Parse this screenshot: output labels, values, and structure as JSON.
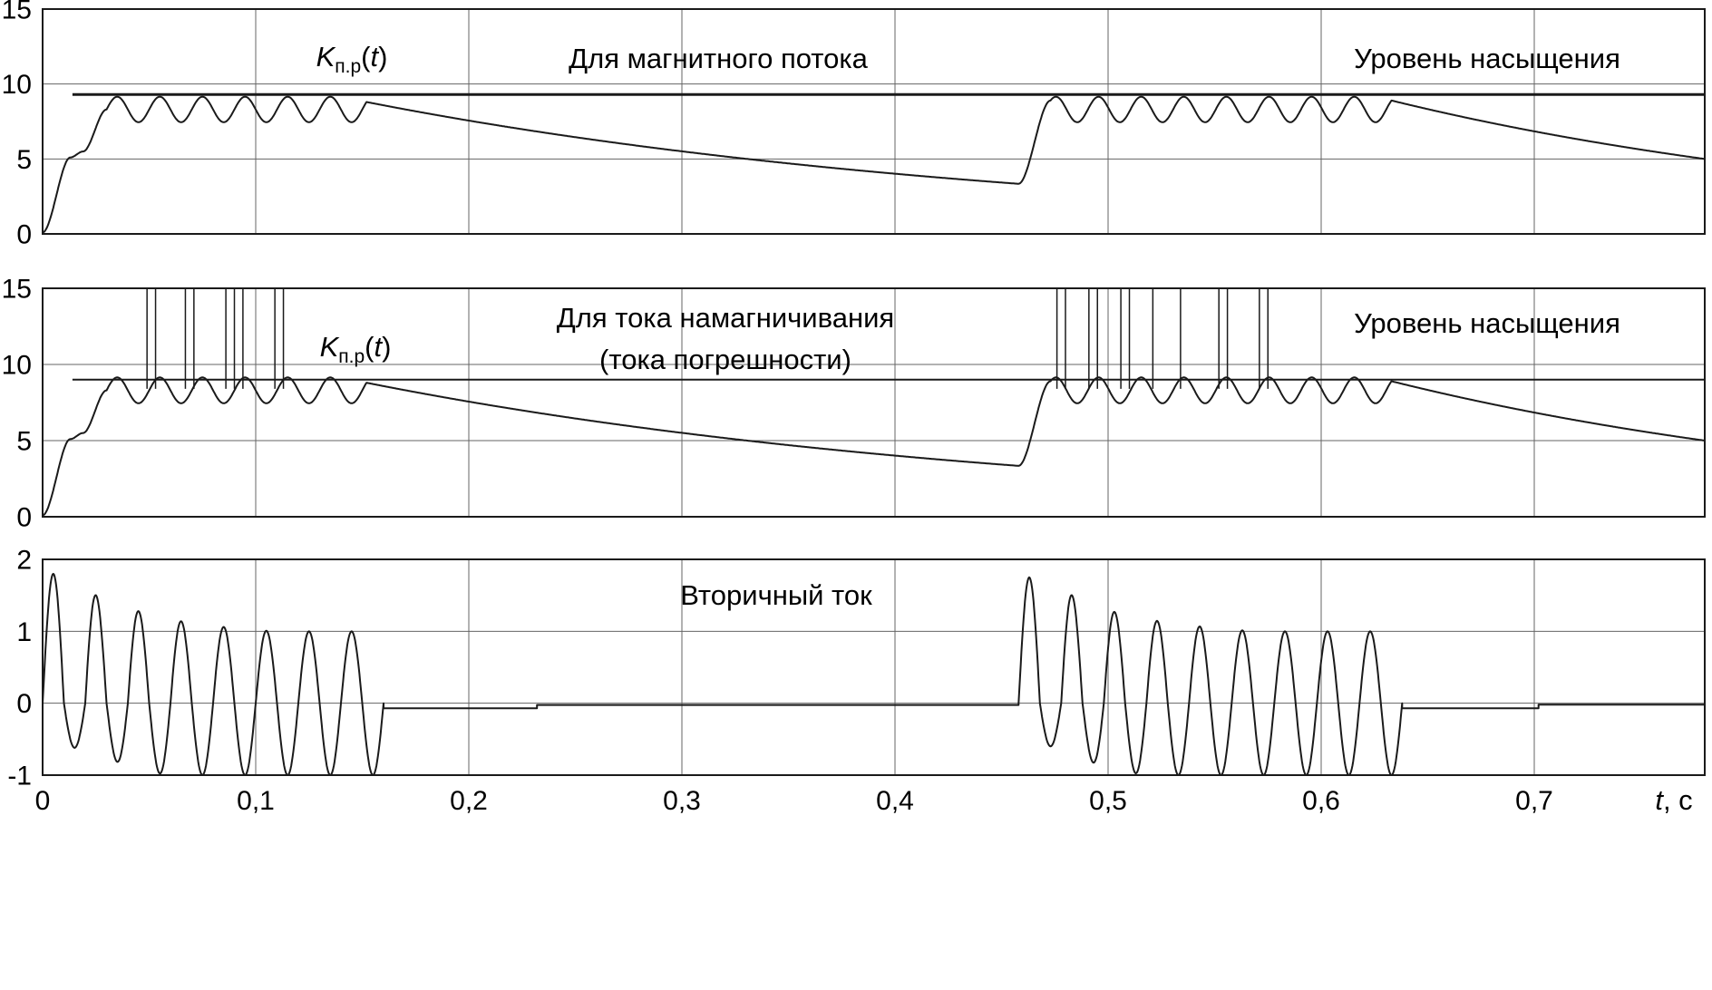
{
  "figure": {
    "bg": "#ffffff",
    "line_color": "#1a1a1a",
    "grid_color": "#646464"
  },
  "xaxis_label": {
    "var": "t",
    "unit": ", с"
  },
  "chart_data": [
    {
      "id": "flux",
      "type": "line",
      "title": "Для магнитного потока",
      "labels": {
        "kpr": {
          "k": "K",
          "sub": "п.р",
          "open": "(",
          "var": "t",
          "close": ")"
        },
        "sat": "Уровень насыщения"
      },
      "xlim": [
        0,
        0.78
      ],
      "ylim": [
        0,
        15
      ],
      "xgrid": [
        0.1,
        0.2,
        0.3,
        0.4,
        0.5,
        0.6,
        0.7
      ],
      "ygrid": [
        5,
        10
      ],
      "yticks": [
        {
          "v": 15,
          "label": "15"
        },
        {
          "v": 10,
          "label": "10"
        },
        {
          "v": 5,
          "label": "5"
        },
        {
          "v": 0,
          "label": "0"
        }
      ],
      "xticks": [],
      "series": [
        {
          "name": "flux-saturation-level",
          "type": "hline",
          "v": 9.3,
          "t0": 0.014,
          "t1": 0.78,
          "w": 3
        },
        {
          "name": "flux-kpr-curve",
          "type": "piecewise",
          "w": 2,
          "segments": [
            {
              "type": "smooth",
              "t0": 0,
              "t1": 0.013,
              "v0": 0.1,
              "v1": 5.1
            },
            {
              "type": "smooth",
              "t0": 0.013,
              "t1": 0.019,
              "v0": 5.1,
              "v1": 5.5
            },
            {
              "type": "smooth",
              "t0": 0.019,
              "t1": 0.03,
              "v0": 5.5,
              "v1": 8.3
            },
            {
              "type": "ripple",
              "t0": 0.03,
              "t1": 0.152,
              "base": 8.3,
              "amp": 0.85,
              "freq": 50,
              "phase": 0
            },
            {
              "type": "decay",
              "t0": 0.152,
              "t1": 0.458,
              "v0": 8.8,
              "vend": 0,
              "tau": 0.316
            },
            {
              "type": "smooth",
              "t0": 0.458,
              "t1": 0.473,
              "v0": 3.35,
              "v1": 8.9
            },
            {
              "type": "ripple",
              "t0": 0.473,
              "t1": 0.633,
              "base": 8.3,
              "amp": 0.85,
              "freq": 50,
              "phase": 0.78
            },
            {
              "type": "decay",
              "t0": 0.633,
              "t1": 0.78,
              "v0": 8.9,
              "vend": 0,
              "tau": 0.255
            }
          ]
        }
      ]
    },
    {
      "id": "mag",
      "type": "line",
      "title_line1": "Для тока намагничивания",
      "title_line2": "(тока погрешности)",
      "labels": {
        "kpr": {
          "k": "K",
          "sub": "п.р",
          "open": "(",
          "var": "t",
          "close": ")"
        },
        "sat": "Уровень насыщения"
      },
      "xlim": [
        0,
        0.78
      ],
      "ylim": [
        0,
        15
      ],
      "xgrid": [
        0.1,
        0.2,
        0.3,
        0.4,
        0.5,
        0.6,
        0.7
      ],
      "ygrid": [
        5,
        10
      ],
      "yticks": [
        {
          "v": 15,
          "label": "15"
        },
        {
          "v": 10,
          "label": "10"
        },
        {
          "v": 5,
          "label": "5"
        },
        {
          "v": 0,
          "label": "0"
        }
      ],
      "xticks": [],
      "series": [
        {
          "name": "mag-saturation-level",
          "type": "hline",
          "v": 9.0,
          "t0": 0.014,
          "t1": 0.78,
          "w": 2
        },
        {
          "name": "mag-error-spikes",
          "type": "vlines",
          "v0": 8.4,
          "v1": 15,
          "w": 1.5,
          "times": [
            0.049,
            0.053,
            0.067,
            0.071,
            0.086,
            0.09,
            0.094,
            0.109,
            0.113,
            0.476,
            0.48,
            0.491,
            0.495,
            0.506,
            0.51,
            0.521,
            0.534,
            0.552,
            0.556,
            0.571,
            0.575
          ]
        },
        {
          "name": "mag-kpr-curve",
          "type": "piecewise",
          "w": 2,
          "segments": [
            {
              "type": "smooth",
              "t0": 0,
              "t1": 0.013,
              "v0": 0.1,
              "v1": 5.1
            },
            {
              "type": "smooth",
              "t0": 0.013,
              "t1": 0.019,
              "v0": 5.1,
              "v1": 5.5
            },
            {
              "type": "smooth",
              "t0": 0.019,
              "t1": 0.03,
              "v0": 5.5,
              "v1": 8.3
            },
            {
              "type": "ripple",
              "t0": 0.03,
              "t1": 0.152,
              "base": 8.3,
              "amp": 0.85,
              "freq": 50,
              "phase": 0
            },
            {
              "type": "decay",
              "t0": 0.152,
              "t1": 0.458,
              "v0": 8.8,
              "vend": 0,
              "tau": 0.316
            },
            {
              "type": "smooth",
              "t0": 0.458,
              "t1": 0.473,
              "v0": 3.35,
              "v1": 8.9
            },
            {
              "type": "ripple",
              "t0": 0.473,
              "t1": 0.633,
              "base": 8.3,
              "amp": 0.85,
              "freq": 50,
              "phase": 0.78
            },
            {
              "type": "decay",
              "t0": 0.633,
              "t1": 0.78,
              "v0": 8.9,
              "vend": 0,
              "tau": 0.255
            }
          ]
        }
      ]
    },
    {
      "id": "sec",
      "type": "line",
      "title": "Вторичный ток",
      "labels": {},
      "xlim": [
        0,
        0.78
      ],
      "ylim": [
        -1,
        2
      ],
      "xgrid": [
        0.1,
        0.2,
        0.3,
        0.4,
        0.5,
        0.6,
        0.7
      ],
      "ygrid": [
        0,
        1
      ],
      "yticks": [
        {
          "v": 2,
          "label": "2"
        },
        {
          "v": 1,
          "label": "1"
        },
        {
          "v": 0,
          "label": "0"
        },
        {
          "v": -1,
          "label": "-1"
        }
      ],
      "xticks": [
        {
          "v": 0,
          "label": "0"
        },
        {
          "v": 0.1,
          "label": "0,1"
        },
        {
          "v": 0.2,
          "label": "0,2"
        },
        {
          "v": 0.3,
          "label": "0,3"
        },
        {
          "v": 0.4,
          "label": "0,4"
        },
        {
          "v": 0.5,
          "label": "0,5"
        },
        {
          "v": 0.6,
          "label": "0,6"
        },
        {
          "v": 0.7,
          "label": "0,7"
        }
      ],
      "series": [
        {
          "name": "secondary-current-curve",
          "type": "piecewise",
          "w": 2,
          "segments": [
            {
              "type": "burst",
              "t0": 0,
              "t1": 0.16,
              "freq": 50,
              "phase": 0,
              "peaks": [
                [
                  0.008,
                  1.8
                ],
                [
                  0.028,
                  1.45
                ],
                [
                  0.048,
                  1.25
                ],
                [
                  0.068,
                  1.12
                ],
                [
                  0.088,
                  1.05
                ],
                [
                  0.108,
                  1.0
                ],
                [
                  0.16,
                  1.0
                ]
              ],
              "troughs": [
                [
                  0.018,
                  0.62
                ],
                [
                  0.038,
                  0.85
                ],
                [
                  0.058,
                  1.0
                ],
                [
                  0.158,
                  1.0
                ]
              ]
            },
            {
              "type": "line",
              "t0": 0.16,
              "t1": 0.232,
              "v0": -0.07,
              "v1": -0.07
            },
            {
              "type": "line",
              "t0": 0.232,
              "t1": 0.458,
              "v0": -0.025,
              "v1": -0.025
            },
            {
              "type": "burst",
              "t0": 0.458,
              "t1": 0.638,
              "freq": 50,
              "phase": 0,
              "peaks": [
                [
                  0.468,
                  1.75
                ],
                [
                  0.488,
                  1.42
                ],
                [
                  0.508,
                  1.22
                ],
                [
                  0.528,
                  1.12
                ],
                [
                  0.548,
                  1.05
                ],
                [
                  0.568,
                  1.0
                ],
                [
                  0.638,
                  1.0
                ]
              ],
              "troughs": [
                [
                  0.478,
                  0.6
                ],
                [
                  0.498,
                  0.9
                ],
                [
                  0.518,
                  1.0
                ],
                [
                  0.638,
                  1.0
                ]
              ]
            },
            {
              "type": "line",
              "t0": 0.638,
              "t1": 0.702,
              "v0": -0.07,
              "v1": -0.07
            },
            {
              "type": "line",
              "t0": 0.702,
              "t1": 0.78,
              "v0": -0.02,
              "v1": -0.02
            }
          ]
        }
      ]
    }
  ]
}
